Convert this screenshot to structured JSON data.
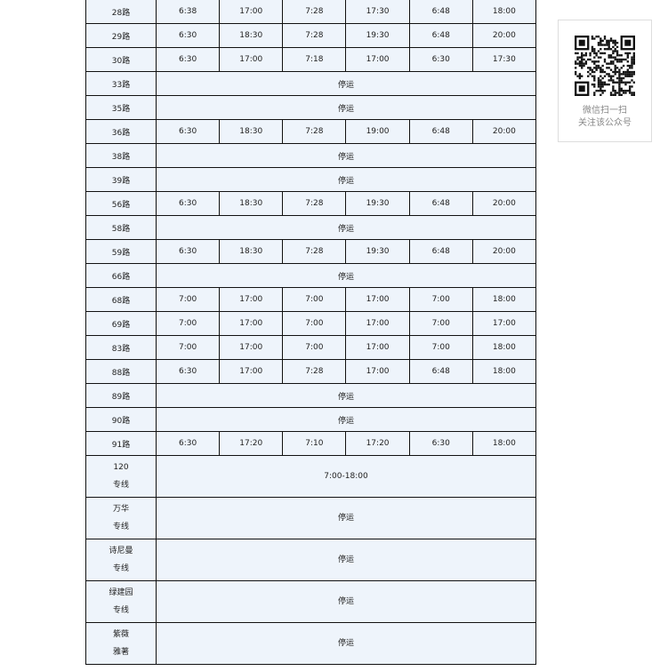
{
  "suspended_label": "停运",
  "rows": [
    {
      "name": "28路",
      "times": [
        "6:38",
        "17:00",
        "7:28",
        "17:30",
        "6:48",
        "18:00"
      ]
    },
    {
      "name": "29路",
      "times": [
        "6:30",
        "18:30",
        "7:28",
        "19:30",
        "6:48",
        "20:00"
      ]
    },
    {
      "name": "30路",
      "times": [
        "6:30",
        "17:00",
        "7:18",
        "17:00",
        "6:30",
        "17:30"
      ]
    },
    {
      "name": "33路",
      "span": "停运"
    },
    {
      "name": "35路",
      "span": "停运"
    },
    {
      "name": "36路",
      "times": [
        "6:30",
        "18:30",
        "7:28",
        "19:00",
        "6:48",
        "20:00"
      ]
    },
    {
      "name": "38路",
      "span": "停运"
    },
    {
      "name": "39路",
      "span": "停运"
    },
    {
      "name": "56路",
      "times": [
        "6:30",
        "18:30",
        "7:28",
        "19:30",
        "6:48",
        "20:00"
      ]
    },
    {
      "name": "58路",
      "span": "停运"
    },
    {
      "name": "59路",
      "times": [
        "6:30",
        "18:30",
        "7:28",
        "19:30",
        "6:48",
        "20:00"
      ]
    },
    {
      "name": "66路",
      "span": "停运"
    },
    {
      "name": "68路",
      "times": [
        "7:00",
        "17:00",
        "7:00",
        "17:00",
        "7:00",
        "18:00"
      ]
    },
    {
      "name": "69路",
      "times": [
        "7:00",
        "17:00",
        "7:00",
        "17:00",
        "7:00",
        "17:00"
      ]
    },
    {
      "name": "83路",
      "times": [
        "7:00",
        "17:00",
        "7:00",
        "17:00",
        "7:00",
        "18:00"
      ]
    },
    {
      "name": "88路",
      "times": [
        "6:30",
        "17:00",
        "7:28",
        "17:00",
        "6:48",
        "18:00"
      ]
    },
    {
      "name": "89路",
      "span": "停运"
    },
    {
      "name": "90路",
      "span": "停运"
    },
    {
      "name": "91路",
      "times": [
        "6:30",
        "17:20",
        "7:10",
        "17:20",
        "6:30",
        "18:00"
      ]
    },
    {
      "name": "120",
      "name2": "专线",
      "span": "7:00-18:00"
    },
    {
      "name": "万华",
      "name2": "专线",
      "span": "停运"
    },
    {
      "name": "诗尼曼",
      "name2": "专线",
      "span": "停运"
    },
    {
      "name": "绿建园",
      "name2": "专线",
      "span": "停运"
    },
    {
      "name": "紫薇",
      "name2": "雅著",
      "span": "停运"
    }
  ],
  "qr": {
    "line1": "微信扫一扫",
    "line2": "关注该公众号"
  }
}
